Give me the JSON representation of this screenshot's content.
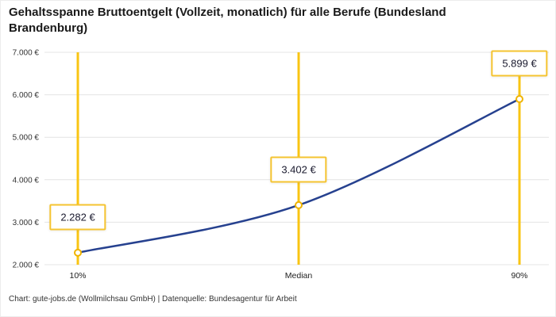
{
  "title": "Gehaltsspanne Bruttoentgelt (Vollzeit, monatlich) für alle Berufe (Bundesland Brandenburg)",
  "footer": "Chart: gute-jobs.de (Wollmilchsau GmbH) | Datenquelle: Bundesagentur für Arbeit",
  "chart_data": {
    "type": "line",
    "title": "Gehaltsspanne Bruttoentgelt (Vollzeit, monatlich) für alle Berufe (Bundesland Brandenburg)",
    "categories": [
      "10%",
      "Median",
      "90%"
    ],
    "values": [
      2282,
      3402,
      5899
    ],
    "value_labels": [
      "2.282 €",
      "3.402 €",
      "5.899 €"
    ],
    "annotation_names": [
      "annotation-p10",
      "annotation-median",
      "annotation-p90"
    ],
    "y_ticks": [
      {
        "value": 7000,
        "label": "7.000 €"
      },
      {
        "value": 6000,
        "label": "6.000 €"
      },
      {
        "value": 5000,
        "label": "5.000 €"
      },
      {
        "value": 4000,
        "label": "4.000 €"
      },
      {
        "value": 3000,
        "label": "3.000 €"
      },
      {
        "value": 2000,
        "label": "2.000 €"
      }
    ],
    "ylim": [
      2000,
      7000
    ],
    "grid": true,
    "legend": false,
    "xlabel": "",
    "ylabel": "",
    "colors": {
      "line": "#26418f",
      "marker_line": "#f9c513",
      "marker_fill": "#ffffff",
      "marker_stroke": "#f0b400",
      "annotation_border": "#f5c431",
      "grid": "#e4e4e4",
      "axis_text": "#333333"
    }
  }
}
